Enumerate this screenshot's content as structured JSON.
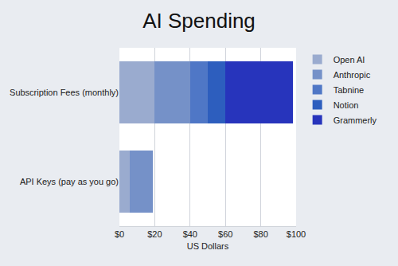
{
  "chart_data": {
    "type": "bar",
    "title": "AI Spending",
    "orientation": "horizontal",
    "stacked": true,
    "grid": true,
    "legend": "top right",
    "x_label": "US Dollars",
    "categories": [
      "Subscription Fees (monthly)",
      "API Keys (pay as you go)"
    ],
    "series": [
      {
        "name": "Open AI",
        "color": "#9aabcf",
        "values": [
          20,
          6
        ]
      },
      {
        "name": "Anthropic",
        "color": "#7591c8",
        "values": [
          20,
          13
        ]
      },
      {
        "name": "Tabnine",
        "color": "#4f77c6",
        "values": [
          10,
          0
        ]
      },
      {
        "name": "Notion",
        "color": "#2d5ebe",
        "values": [
          10,
          0
        ]
      },
      {
        "name": "Grammerly",
        "color": "#2734bc",
        "values": [
          38,
          0
        ]
      }
    ],
    "xlim": [
      0,
      100
    ],
    "xticks": [
      {
        "value": 0,
        "label": "$0"
      },
      {
        "value": 20,
        "label": "$20"
      },
      {
        "value": 40,
        "label": "$40"
      },
      {
        "value": 60,
        "label": "$60"
      },
      {
        "value": 80,
        "label": "$80"
      },
      {
        "value": 100,
        "label": "$100"
      }
    ]
  }
}
